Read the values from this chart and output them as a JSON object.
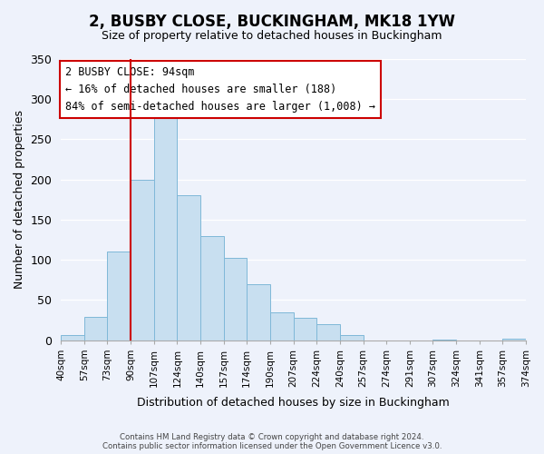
{
  "title": "2, BUSBY CLOSE, BUCKINGHAM, MK18 1YW",
  "subtitle": "Size of property relative to detached houses in Buckingham",
  "xlabel": "Distribution of detached houses by size in Buckingham",
  "ylabel": "Number of detached properties",
  "bin_labels": [
    "40sqm",
    "57sqm",
    "73sqm",
    "90sqm",
    "107sqm",
    "124sqm",
    "140sqm",
    "157sqm",
    "174sqm",
    "190sqm",
    "207sqm",
    "224sqm",
    "240sqm",
    "257sqm",
    "274sqm",
    "291sqm",
    "307sqm",
    "324sqm",
    "341sqm",
    "357sqm",
    "374sqm"
  ],
  "bar_heights": [
    7,
    29,
    111,
    200,
    293,
    181,
    130,
    103,
    70,
    35,
    28,
    20,
    6,
    0,
    0,
    0,
    1,
    0,
    0,
    2
  ],
  "bar_color": "#c8dff0",
  "bar_edge_color": "#7fb8d8",
  "vline_x": 3.0,
  "vline_color": "#cc0000",
  "annotation_text": "2 BUSBY CLOSE: 94sqm\n← 16% of detached houses are smaller (188)\n84% of semi-detached houses are larger (1,008) →",
  "annotation_box_color": "#ffffff",
  "annotation_box_edge": "#cc0000",
  "ylim": [
    0,
    350
  ],
  "yticks": [
    0,
    50,
    100,
    150,
    200,
    250,
    300,
    350
  ],
  "footer1": "Contains HM Land Registry data © Crown copyright and database right 2024.",
  "footer2": "Contains public sector information licensed under the Open Government Licence v3.0.",
  "bg_color": "#eef2fb"
}
